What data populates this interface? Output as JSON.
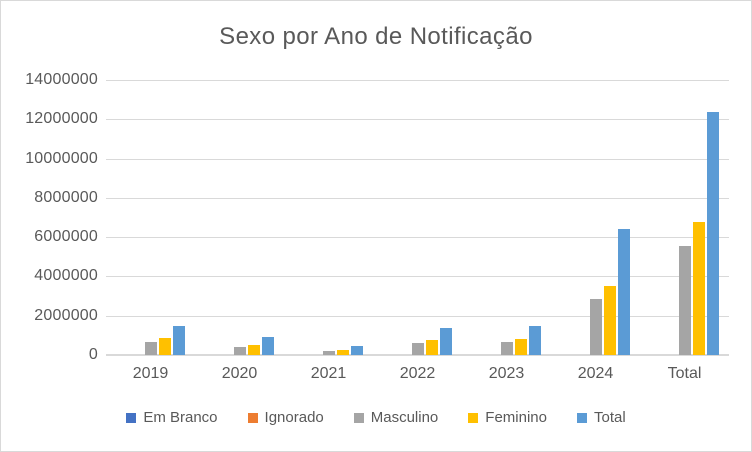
{
  "chart_data": {
    "type": "bar",
    "title": "Sexo por Ano de Notificação",
    "categories": [
      "2019",
      "2020",
      "2021",
      "2022",
      "2023",
      "2024",
      "Total"
    ],
    "series": [
      {
        "name": "Em Branco",
        "color": "#4472C4",
        "values": [
          0,
          0,
          0,
          0,
          0,
          0,
          0
        ]
      },
      {
        "name": "Ignorado",
        "color": "#ED7D31",
        "values": [
          0,
          0,
          0,
          0,
          0,
          0,
          0
        ]
      },
      {
        "name": "Masculino",
        "color": "#A5A5A5",
        "values": [
          650000,
          390000,
          190000,
          590000,
          640000,
          2850000,
          5560000
        ]
      },
      {
        "name": "Feminino",
        "color": "#FFC000",
        "values": [
          850000,
          520000,
          240000,
          760000,
          815000,
          3490000,
          6750000
        ]
      },
      {
        "name": "Total",
        "color": "#5B9BD5",
        "values": [
          1500000,
          920000,
          480000,
          1360000,
          1470000,
          6410000,
          12380000
        ]
      }
    ],
    "xlabel": "",
    "ylabel": "",
    "ylim": [
      0,
      14000000
    ],
    "ytick_step": 2000000,
    "ytick_labels": [
      "0",
      "2000000",
      "4000000",
      "6000000",
      "8000000",
      "10000000",
      "12000000",
      "14000000"
    ],
    "grid": true,
    "legend_position": "bottom"
  },
  "colors": {
    "text": "#595959",
    "gridline": "#D9D9D9",
    "border": "#D9D9D9",
    "background": "#FFFFFF"
  }
}
